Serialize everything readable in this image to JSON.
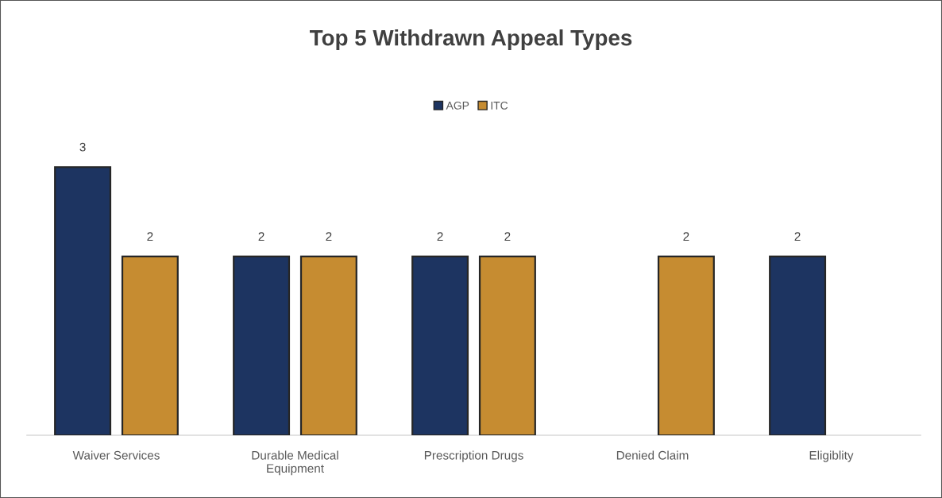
{
  "chart_data": {
    "type": "bar",
    "title": "Top 5 Withdrawn Appeal Types",
    "categories": [
      "Waiver Services",
      "Durable Medical Equipment",
      "Prescription Drugs",
      "Denied Claim",
      "Eligiblity"
    ],
    "series": [
      {
        "name": "AGP",
        "color": "#1d3461",
        "values": [
          3,
          2,
          2,
          null,
          2
        ]
      },
      {
        "name": "ITC",
        "color": "#c68c31",
        "values": [
          2,
          2,
          2,
          2,
          null
        ]
      }
    ],
    "data_labels": true,
    "legend": "top",
    "grid": false,
    "tick_labels": "x"
  }
}
